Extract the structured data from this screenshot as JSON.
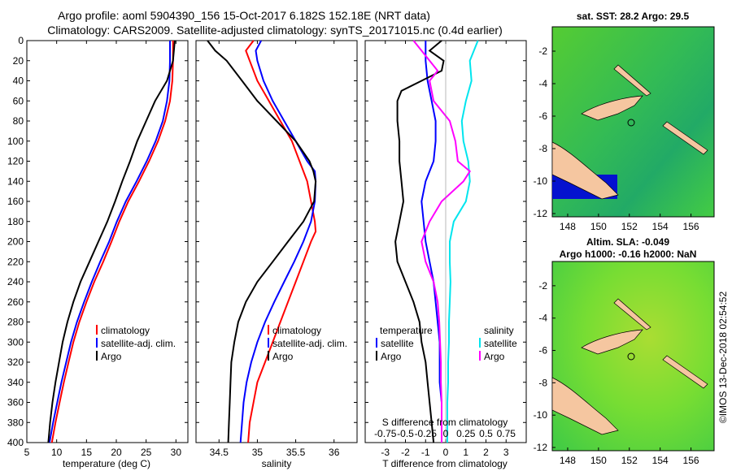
{
  "titles": {
    "line1": "Argo profile: aoml 5904390_156 15-Oct-2017 6.182S 152.18E (NRT data)",
    "line2": "Climatology: CARS2009. Satellite-adjusted climatology: synTS_20171015.nc (0.4d earlier)"
  },
  "colors": {
    "climatology": "#ff0000",
    "satellite": "#0000ff",
    "argo": "#000000",
    "s_argo": "#ff00ff",
    "s_sat": "#00e5ee"
  },
  "chart_data": [
    {
      "type": "line",
      "xlabel": "temperature (deg C)",
      "ylabel": "",
      "xlim": [
        5,
        32
      ],
      "ylim": [
        400,
        0
      ],
      "xticks": [
        5,
        10,
        15,
        20,
        25,
        30
      ],
      "xtick_labels": [
        "5",
        "10",
        "15",
        "20",
        "25",
        "30"
      ],
      "yticks": [
        0,
        20,
        40,
        60,
        80,
        100,
        120,
        140,
        160,
        180,
        200,
        220,
        240,
        260,
        280,
        300,
        320,
        340,
        360,
        380,
        400
      ],
      "legend": [
        "climatology",
        "satellite-adj. clim.",
        "Argo"
      ],
      "series": [
        {
          "name": "climatology",
          "depth": [
            0,
            20,
            40,
            60,
            80,
            100,
            120,
            140,
            160,
            180,
            200,
            220,
            240,
            260,
            280,
            300,
            320,
            340,
            360,
            380,
            400
          ],
          "values": [
            29.5,
            29.5,
            29.4,
            29.0,
            28.2,
            27.0,
            25.5,
            23.8,
            22.0,
            20.5,
            19.2,
            17.8,
            16.3,
            15.0,
            13.8,
            12.8,
            12.0,
            11.2,
            10.5,
            9.8,
            9.2
          ]
        },
        {
          "name": "satellite-adj. clim.",
          "depth": [
            0,
            20,
            40,
            60,
            80,
            100,
            120,
            140,
            160,
            180,
            200,
            220,
            240,
            260,
            280,
            300,
            320,
            340,
            360,
            380,
            400
          ],
          "values": [
            29.0,
            29.0,
            28.9,
            28.5,
            27.8,
            26.6,
            25.1,
            23.4,
            21.6,
            20.1,
            18.8,
            17.3,
            15.9,
            14.6,
            13.4,
            12.4,
            11.6,
            10.8,
            10.1,
            9.4,
            8.8
          ]
        },
        {
          "name": "Argo",
          "depth": [
            0,
            20,
            40,
            60,
            80,
            100,
            120,
            140,
            160,
            180,
            200,
            220,
            240,
            260,
            280,
            300,
            320,
            340,
            360,
            380,
            400
          ],
          "values": [
            29.8,
            29.5,
            28.5,
            26.5,
            25.0,
            23.5,
            22.3,
            21.0,
            19.8,
            18.5,
            17.0,
            15.5,
            14.0,
            12.8,
            11.8,
            11.0,
            10.4,
            9.8,
            9.3,
            8.9,
            8.6
          ]
        }
      ]
    },
    {
      "type": "line",
      "xlabel": "salinity",
      "ylabel": "",
      "xlim": [
        34.2,
        36.3
      ],
      "ylim": [
        400,
        0
      ],
      "xticks": [
        34.5,
        35,
        35.5,
        36
      ],
      "xtick_labels": [
        "34.5",
        "35",
        "35.5",
        "36"
      ],
      "legend": [
        "climatology",
        "satellite-adj. clim.",
        "Argo"
      ],
      "series": [
        {
          "name": "climatology",
          "depth": [
            0,
            10,
            20,
            40,
            60,
            80,
            100,
            120,
            140,
            160,
            180,
            190,
            200,
            220,
            240,
            260,
            280,
            300,
            320,
            340,
            360,
            380,
            400
          ],
          "values": [
            34.95,
            34.85,
            34.9,
            35.0,
            35.15,
            35.3,
            35.45,
            35.55,
            35.65,
            35.7,
            35.75,
            35.76,
            35.7,
            35.6,
            35.5,
            35.4,
            35.3,
            35.2,
            35.1,
            35.0,
            34.95,
            34.9,
            34.88
          ]
        },
        {
          "name": "satellite-adj. clim.",
          "depth": [
            0,
            10,
            20,
            40,
            60,
            80,
            100,
            120,
            130,
            140,
            160,
            180,
            200,
            220,
            240,
            260,
            280,
            300,
            320,
            340,
            360,
            380,
            400
          ],
          "values": [
            35.05,
            34.98,
            35.0,
            35.08,
            35.2,
            35.35,
            35.5,
            35.65,
            35.75,
            35.76,
            35.75,
            35.7,
            35.6,
            35.48,
            35.35,
            35.22,
            35.1,
            35.0,
            34.92,
            34.86,
            34.82,
            34.8,
            34.78
          ]
        },
        {
          "name": "Argo",
          "depth": [
            0,
            10,
            20,
            40,
            60,
            80,
            100,
            120,
            130,
            140,
            160,
            180,
            200,
            220,
            240,
            260,
            280,
            300,
            320,
            340,
            360,
            380,
            400
          ],
          "values": [
            34.35,
            34.45,
            34.6,
            34.8,
            35.0,
            35.25,
            35.5,
            35.68,
            35.73,
            35.76,
            35.74,
            35.6,
            35.4,
            35.2,
            35.0,
            34.85,
            34.75,
            34.7,
            34.66,
            34.65,
            34.64,
            34.63,
            34.62
          ]
        }
      ]
    },
    {
      "type": "line",
      "xlabel": "T difference from climatology",
      "top_label": "S difference from climatology",
      "xlim": [
        -4,
        4
      ],
      "ylim": [
        400,
        0
      ],
      "xticks": [
        -3,
        -2,
        -1,
        0,
        1,
        2,
        3
      ],
      "xtick_labels": [
        "-3",
        "-2",
        "-1",
        "0",
        "1",
        "2",
        "3"
      ],
      "s_xticks": [
        -0.75,
        -0.5,
        -0.25,
        0,
        0.25,
        0.5,
        0.75
      ],
      "s_xtick_labels": [
        "-0.75",
        "-0.5",
        "-0.25",
        "0",
        "0.25",
        "0.5",
        "0.75"
      ],
      "legend_temperature": {
        "heading": "temperature",
        "items": [
          "satellite",
          "Argo"
        ]
      },
      "legend_salinity": {
        "heading": "salinity",
        "items": [
          "satellite",
          "Argo"
        ]
      },
      "series": [
        {
          "name": "T satellite",
          "depth": [
            0,
            20,
            40,
            60,
            80,
            100,
            120,
            140,
            160,
            180,
            200,
            220,
            240,
            260,
            280,
            300,
            320,
            340,
            360,
            380,
            400
          ],
          "values": [
            -1.0,
            -1.0,
            -0.9,
            -0.7,
            -0.5,
            -0.5,
            -0.6,
            -1.0,
            -1.2,
            -1.1,
            -1.0,
            -0.8,
            -0.6,
            -0.5,
            -0.4,
            -0.3,
            -0.3,
            -0.3,
            -0.2,
            -0.2,
            -0.2
          ]
        },
        {
          "name": "T Argo",
          "depth": [
            0,
            10,
            20,
            30,
            40,
            50,
            60,
            80,
            100,
            120,
            140,
            160,
            180,
            200,
            220,
            240,
            260,
            280,
            300,
            320,
            340,
            360,
            380,
            400
          ],
          "values": [
            -0.2,
            -0.8,
            -0.1,
            -0.2,
            -1.2,
            -2.2,
            -2.4,
            -2.4,
            -2.3,
            -2.3,
            -2.2,
            -2.1,
            -2.3,
            -2.5,
            -2.4,
            -2.0,
            -1.6,
            -1.3,
            -1.2,
            -1.0,
            -0.9,
            -0.8,
            -0.7,
            -0.6
          ]
        },
        {
          "name": "S satellite",
          "depth": [
            0,
            20,
            40,
            60,
            80,
            100,
            120,
            140,
            160,
            180,
            200,
            220,
            240,
            260,
            280,
            300,
            320,
            340,
            360,
            380,
            400
          ],
          "values": [
            0.4,
            0.3,
            0.32,
            0.25,
            0.2,
            0.22,
            0.28,
            0.3,
            0.25,
            0.1,
            0.05,
            0.05,
            0.06,
            0.05,
            0.04,
            0.04,
            0.03,
            0.03,
            0.02,
            0.02,
            0.02
          ]
        },
        {
          "name": "S Argo",
          "depth": [
            0,
            10,
            20,
            30,
            40,
            60,
            80,
            100,
            120,
            130,
            140,
            160,
            180,
            200,
            220,
            240,
            260,
            280,
            300,
            320,
            340,
            360,
            380,
            400
          ],
          "values": [
            -0.4,
            -0.3,
            -0.2,
            -0.1,
            -0.2,
            -0.15,
            0.05,
            0.12,
            0.15,
            0.3,
            0.22,
            -0.05,
            -0.2,
            -0.3,
            -0.25,
            -0.15,
            -0.1,
            -0.08,
            -0.07,
            -0.06,
            -0.06,
            -0.05,
            -0.05,
            -0.05
          ]
        }
      ]
    },
    {
      "type": "heatmap",
      "title": "sat. SST: 28.2 Argo: 29.5",
      "xticks": [
        148,
        150,
        152,
        154,
        156
      ],
      "xtick_labels": [
        "148",
        "150",
        "152",
        "154",
        "156"
      ],
      "yticks": [
        -2,
        -4,
        -6,
        -8,
        -10,
        -12
      ],
      "ytick_labels": [
        "-2",
        "-4",
        "-6",
        "-8",
        "-10",
        "-12"
      ],
      "xlim": [
        147,
        157.5
      ],
      "ylim": [
        -12.2,
        -0.5
      ],
      "argo_position": [
        152.18,
        -6.182
      ]
    },
    {
      "type": "heatmap",
      "title": "Altim. SLA: -0.049",
      "subtitle": "Argo h1000: -0.16 h2000: NaN",
      "xticks": [
        148,
        150,
        152,
        154,
        156
      ],
      "xtick_labels": [
        "148",
        "150",
        "152",
        "154",
        "156"
      ],
      "yticks": [
        -2,
        -4,
        -6,
        -8,
        -10,
        -12
      ],
      "ytick_labels": [
        "-2",
        "-4",
        "-6",
        "-8",
        "-10",
        "-12"
      ],
      "xlim": [
        147,
        157.5
      ],
      "ylim": [
        -12.2,
        -0.5
      ],
      "argo_position": [
        152.18,
        -6.182
      ]
    }
  ],
  "watermark": "©IMOS 13-Dec-2018 02:54:52"
}
